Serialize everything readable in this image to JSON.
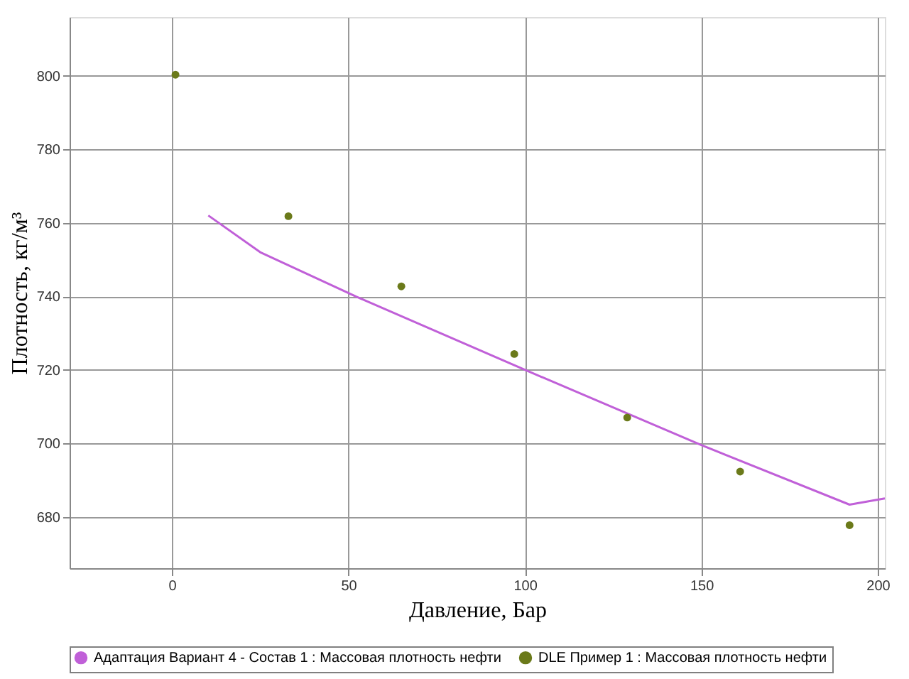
{
  "chart_data": {
    "type": "line",
    "xlabel": "Давление, Бар",
    "ylabel": "Плотность, кг/м³",
    "xlim": [
      -29,
      202
    ],
    "xticks": [
      0,
      50,
      100,
      150,
      200
    ],
    "ylim": [
      666,
      816
    ],
    "yticks": [
      680,
      700,
      720,
      740,
      760,
      780,
      800
    ],
    "grid": true,
    "legend": "bottom",
    "series": [
      {
        "name": "Адаптация Вариант 4 - Состав 1 : Массовая плотность нефти",
        "marker": "none",
        "color": "#c060d8",
        "x": [
          10.3,
          25,
          52,
          100,
          150,
          192,
          202
        ],
        "values": [
          762,
          752,
          740,
          720,
          699.5,
          683.3,
          685
        ]
      },
      {
        "name": "DLE Пример 1 : Массовая плотность нефти",
        "type": "scatter",
        "marker": "circle",
        "color": "#6b7a1a",
        "x": [
          1,
          33,
          65,
          97,
          129,
          161,
          192
        ],
        "values": [
          800.3,
          761.8,
          742.7,
          724.3,
          707.0,
          692.3,
          677.7
        ]
      }
    ]
  }
}
